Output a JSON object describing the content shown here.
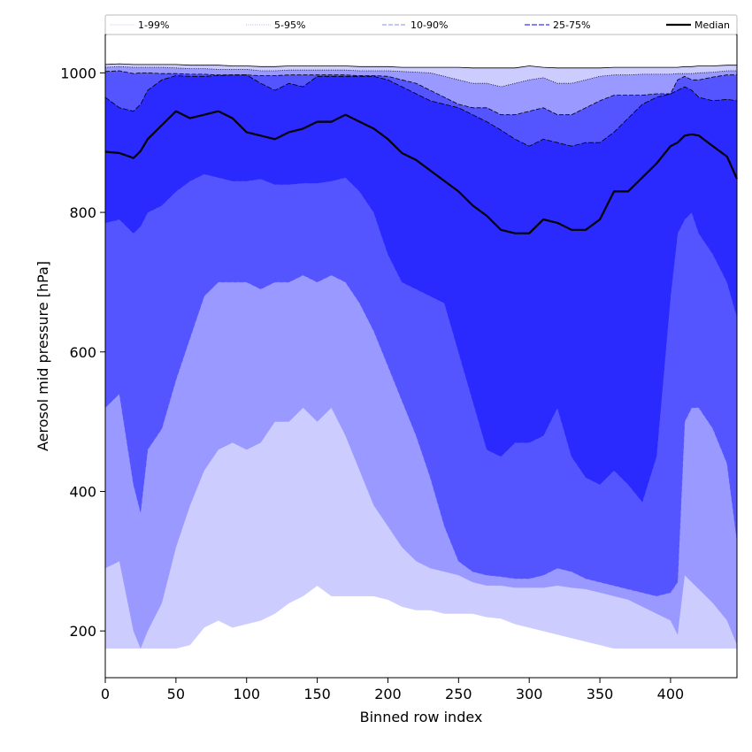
{
  "chart_data": {
    "type": "area",
    "title": "",
    "xlabel": "Binned row index",
    "ylabel": "Aerosol mid pressure [hPa]",
    "xlim": [
      0,
      447
    ],
    "ylim": [
      133,
      1055
    ],
    "x_ticks": [
      0,
      50,
      100,
      150,
      200,
      250,
      300,
      350,
      400
    ],
    "y_ticks": [
      200,
      400,
      600,
      800,
      1000
    ],
    "grid": false,
    "legend_position": "top",
    "x": [
      0,
      10,
      20,
      25,
      30,
      40,
      50,
      60,
      70,
      80,
      90,
      100,
      110,
      120,
      130,
      140,
      150,
      160,
      170,
      180,
      190,
      200,
      210,
      220,
      230,
      240,
      250,
      260,
      270,
      280,
      290,
      300,
      310,
      320,
      330,
      340,
      350,
      360,
      370,
      380,
      390,
      400,
      405,
      410,
      415,
      420,
      430,
      440,
      447
    ],
    "bands": [
      {
        "name": "1-99%",
        "color": "#ccccff",
        "lower": [
          175,
          175,
          175,
          175,
          175,
          175,
          175,
          180,
          205,
          215,
          205,
          210,
          215,
          225,
          240,
          250,
          265,
          250,
          250,
          250,
          250,
          245,
          235,
          230,
          230,
          225,
          225,
          225,
          220,
          218,
          210,
          205,
          200,
          195,
          190,
          185,
          180,
          175,
          175,
          175,
          175,
          175,
          175,
          175,
          175,
          175,
          175,
          175,
          175
        ],
        "upper": [
          1012,
          1013,
          1012,
          1012,
          1012,
          1012,
          1012,
          1011,
          1011,
          1011,
          1010,
          1010,
          1009,
          1009,
          1010,
          1010,
          1010,
          1010,
          1010,
          1009,
          1009,
          1009,
          1008,
          1008,
          1008,
          1008,
          1008,
          1007,
          1007,
          1007,
          1007,
          1010,
          1008,
          1007,
          1007,
          1007,
          1007,
          1008,
          1008,
          1008,
          1008,
          1008,
          1008,
          1009,
          1009,
          1010,
          1010,
          1011,
          1011
        ]
      },
      {
        "name": "5-95%",
        "color": "#9999ff",
        "lower": [
          290,
          300,
          200,
          175,
          200,
          240,
          320,
          380,
          430,
          460,
          470,
          460,
          470,
          500,
          500,
          520,
          500,
          520,
          480,
          430,
          380,
          350,
          320,
          300,
          290,
          285,
          280,
          270,
          265,
          265,
          262,
          262,
          262,
          265,
          262,
          260,
          255,
          250,
          245,
          235,
          225,
          215,
          195,
          280,
          270,
          260,
          240,
          215,
          180
        ],
        "upper": [
          1008,
          1009,
          1008,
          1008,
          1008,
          1008,
          1007,
          1006,
          1006,
          1005,
          1005,
          1005,
          1003,
          1003,
          1004,
          1004,
          1004,
          1004,
          1004,
          1003,
          1003,
          1003,
          1002,
          1001,
          1000,
          995,
          990,
          985,
          985,
          980,
          985,
          990,
          993,
          985,
          985,
          990,
          995,
          997,
          997,
          998,
          998,
          998,
          999,
          999,
          999,
          1000,
          1001,
          1003,
          1003
        ]
      },
      {
        "name": "10-90%",
        "color": "#5555ff",
        "lower": [
          520,
          540,
          410,
          370,
          460,
          490,
          560,
          620,
          680,
          700,
          700,
          700,
          690,
          700,
          700,
          710,
          700,
          710,
          700,
          670,
          630,
          580,
          530,
          480,
          420,
          350,
          300,
          285,
          280,
          278,
          275,
          275,
          280,
          290,
          285,
          275,
          270,
          265,
          260,
          255,
          250,
          255,
          270,
          500,
          520,
          520,
          490,
          440,
          330
        ],
        "upper": [
          1002,
          1003,
          999,
          1000,
          1000,
          999,
          999,
          998,
          998,
          997,
          997,
          997,
          996,
          996,
          997,
          997,
          997,
          997,
          997,
          996,
          996,
          995,
          990,
          985,
          975,
          965,
          955,
          950,
          950,
          940,
          940,
          945,
          950,
          940,
          940,
          950,
          960,
          968,
          968,
          968,
          970,
          970,
          990,
          995,
          990,
          990,
          994,
          997,
          997
        ]
      },
      {
        "name": "25-75%",
        "color": "#2a2aff",
        "lower": [
          785,
          790,
          770,
          780,
          800,
          810,
          830,
          845,
          855,
          850,
          845,
          845,
          848,
          840,
          840,
          842,
          842,
          845,
          850,
          830,
          800,
          740,
          700,
          690,
          680,
          670,
          600,
          530,
          460,
          450,
          470,
          470,
          480,
          520,
          450,
          420,
          410,
          430,
          410,
          385,
          450,
          680,
          770,
          790,
          800,
          770,
          740,
          700,
          650
        ],
        "upper": [
          965,
          950,
          945,
          955,
          975,
          990,
          996,
          995,
          995,
          996,
          997,
          997,
          985,
          975,
          985,
          980,
          995,
          995,
          995,
          995,
          995,
          990,
          980,
          970,
          960,
          955,
          950,
          940,
          930,
          918,
          905,
          895,
          905,
          900,
          895,
          900,
          900,
          915,
          935,
          955,
          965,
          970,
          975,
          980,
          975,
          965,
          960,
          962,
          960
        ]
      }
    ],
    "series": [
      {
        "name": "Median",
        "color": "#000000",
        "values": [
          887,
          885,
          878,
          888,
          905,
          925,
          945,
          935,
          940,
          945,
          935,
          915,
          910,
          905,
          915,
          920,
          930,
          930,
          940,
          930,
          920,
          905,
          885,
          875,
          860,
          845,
          830,
          810,
          795,
          775,
          770,
          770,
          790,
          785,
          775,
          775,
          790,
          830,
          830,
          850,
          870,
          895,
          900,
          910,
          912,
          910,
          895,
          880,
          848
        ]
      }
    ],
    "legend_styles": [
      {
        "label": "1-99%",
        "color": "#ccccff",
        "dash": "",
        "width": 0.6
      },
      {
        "label": "5-95%",
        "color": "#9999ff",
        "dash": "1,1.5",
        "width": 0.8
      },
      {
        "label": "10-90%",
        "color": "#8888ff",
        "dash": "5,2",
        "width": 1.0
      },
      {
        "label": "25-75%",
        "color": "#3333ff",
        "dash": "6,2",
        "width": 1.2
      },
      {
        "label": "Median",
        "color": "#000000",
        "dash": "",
        "width": 2.2
      }
    ]
  }
}
